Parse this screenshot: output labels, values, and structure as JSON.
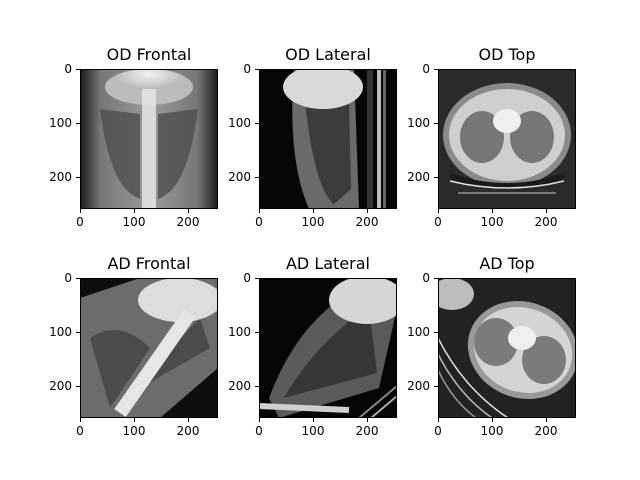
{
  "figure": {
    "panels": [
      {
        "id": "od-frontal",
        "title": "OD Frontal",
        "image_description_icon": "ct-projection-frontal-original",
        "x_ticks": [
          "0",
          "100",
          "200"
        ],
        "y_ticks": [
          "0",
          "100",
          "200"
        ]
      },
      {
        "id": "od-lateral",
        "title": "OD Lateral",
        "image_description_icon": "ct-projection-lateral-original",
        "x_ticks": [
          "0",
          "100",
          "200"
        ],
        "y_ticks": [
          "0",
          "100",
          "200"
        ]
      },
      {
        "id": "od-top",
        "title": "OD Top",
        "image_description_icon": "ct-axial-slice-original",
        "x_ticks": [
          "0",
          "100",
          "200"
        ],
        "y_ticks": [
          "0",
          "100",
          "200"
        ]
      },
      {
        "id": "ad-frontal",
        "title": "AD Frontal",
        "image_description_icon": "ct-projection-frontal-augmented",
        "x_ticks": [
          "0",
          "100",
          "200"
        ],
        "y_ticks": [
          "0",
          "100",
          "200"
        ]
      },
      {
        "id": "ad-lateral",
        "title": "AD Lateral",
        "image_description_icon": "ct-projection-lateral-augmented",
        "x_ticks": [
          "0",
          "100",
          "200"
        ],
        "y_ticks": [
          "0",
          "100",
          "200"
        ]
      },
      {
        "id": "ad-top",
        "title": "AD Top",
        "image_description_icon": "ct-axial-slice-augmented",
        "x_ticks": [
          "0",
          "100",
          "200"
        ],
        "y_ticks": [
          "0",
          "100",
          "200"
        ]
      }
    ]
  }
}
